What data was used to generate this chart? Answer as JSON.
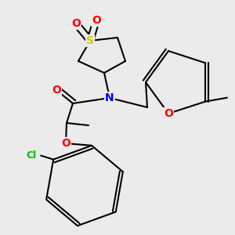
{
  "bg_color": "#ebebeb",
  "bond_color": "#000000",
  "bond_width": 1.5,
  "atom_colors": {
    "S": "#cccc00",
    "O": "#ff0000",
    "N": "#0000ff",
    "Cl": "#00bb00",
    "C": "#000000"
  },
  "fs": 8.5,
  "dbo": 0.012
}
